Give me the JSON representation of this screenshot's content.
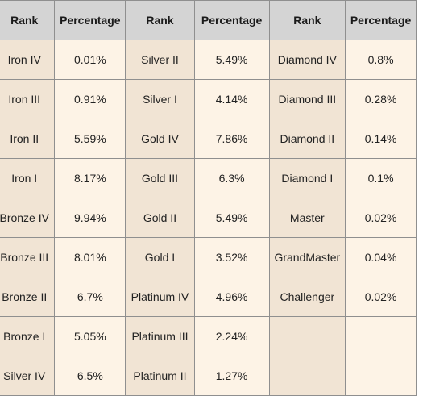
{
  "headers": [
    "Rank",
    "Percentage",
    "Rank",
    "Percentage",
    "Rank",
    "Percentage"
  ],
  "rows": [
    [
      {
        "rank": "Iron IV",
        "pct": "0.01%"
      },
      {
        "rank": "Silver II",
        "pct": "5.49%"
      },
      {
        "rank": "Diamond IV",
        "pct": "0.8%"
      }
    ],
    [
      {
        "rank": "Iron III",
        "pct": "0.91%"
      },
      {
        "rank": "Silver I",
        "pct": "4.14%"
      },
      {
        "rank": "Diamond III",
        "pct": "0.28%"
      }
    ],
    [
      {
        "rank": "Iron II",
        "pct": "5.59%"
      },
      {
        "rank": "Gold IV",
        "pct": "7.86%"
      },
      {
        "rank": "Diamond II",
        "pct": "0.14%"
      }
    ],
    [
      {
        "rank": "Iron I",
        "pct": "8.17%"
      },
      {
        "rank": "Gold III",
        "pct": "6.3%"
      },
      {
        "rank": "Diamond I",
        "pct": "0.1%"
      }
    ],
    [
      {
        "rank": "Bronze IV",
        "pct": "9.94%"
      },
      {
        "rank": "Gold II",
        "pct": "5.49%"
      },
      {
        "rank": "Master",
        "pct": "0.02%"
      }
    ],
    [
      {
        "rank": "Bronze III",
        "pct": "8.01%"
      },
      {
        "rank": "Gold I",
        "pct": "3.52%"
      },
      {
        "rank": "GrandMaster",
        "pct": "0.04%"
      }
    ],
    [
      {
        "rank": "Bronze II",
        "pct": "6.7%"
      },
      {
        "rank": "Platinum IV",
        "pct": "4.96%"
      },
      {
        "rank": "Challenger",
        "pct": "0.02%"
      }
    ],
    [
      {
        "rank": "Bronze I",
        "pct": "5.05%"
      },
      {
        "rank": "Platinum III",
        "pct": "2.24%"
      },
      {
        "rank": "",
        "pct": ""
      }
    ],
    [
      {
        "rank": "Silver IV",
        "pct": "6.5%"
      },
      {
        "rank": "Platinum II",
        "pct": "1.27%"
      },
      {
        "rank": "",
        "pct": ""
      }
    ]
  ],
  "colors": {
    "header_bg": "#d4d4d4",
    "rank_cell_bg": "#f1e4d4",
    "pct_cell_bg": "#fdf3e6",
    "border": "#8f8f8f"
  }
}
